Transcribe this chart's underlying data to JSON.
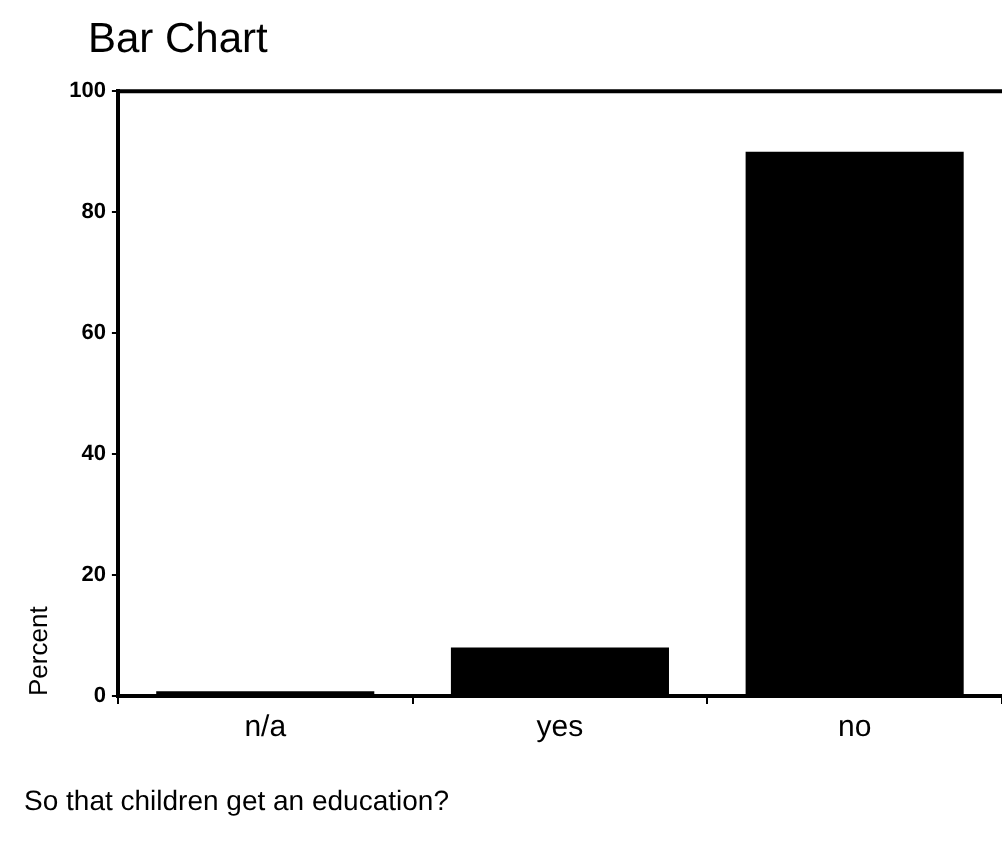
{
  "chart_data": {
    "type": "bar",
    "title": "Bar Chart",
    "xlabel": "So that children get an education?",
    "ylabel": "Percent",
    "categories": [
      "n/a",
      "yes",
      "no"
    ],
    "values": [
      0.8,
      8,
      90
    ],
    "color": "#000000",
    "ylim": [
      0,
      100
    ],
    "yticks": [
      0,
      20,
      40,
      60,
      80,
      100
    ]
  }
}
